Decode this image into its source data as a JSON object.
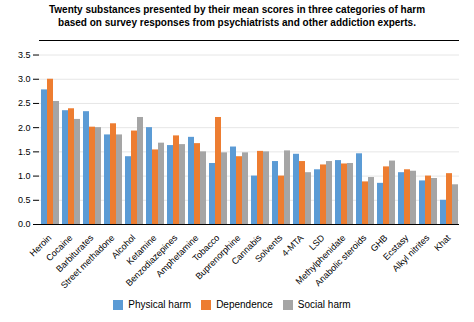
{
  "chart_data": {
    "type": "bar",
    "title": "Twenty substances presented by their mean scores in three categories of harm\nbased on survey responses from psychiatrists and other addiction experts.",
    "categories": [
      "Heroin",
      "Cocaine",
      "Barbiturates",
      "Street methadone",
      "Alcohol",
      "Ketamine",
      "Benzodiazepines",
      "Amphetamine",
      "Tobacco",
      "Buprenorphine",
      "Cannabis",
      "Solvents",
      "4-MTA",
      "LSD",
      "Methylphenidate",
      "Anabolic steroids",
      "GHB",
      "Ecstasy",
      "Alkyl nitrites",
      "Khat"
    ],
    "series": [
      {
        "name": "Physical harm",
        "color": "#5b9bd5",
        "values": [
          2.78,
          2.35,
          2.33,
          1.85,
          1.4,
          2.0,
          1.63,
          1.8,
          1.26,
          1.6,
          1.0,
          1.3,
          1.45,
          1.13,
          1.32,
          1.46,
          0.85,
          1.07,
          0.9,
          0.5
        ]
      },
      {
        "name": "Dependence",
        "color": "#ed7d31",
        "values": [
          3.0,
          2.39,
          2.01,
          2.08,
          1.93,
          1.54,
          1.83,
          1.67,
          2.21,
          1.4,
          1.51,
          1.0,
          1.3,
          1.23,
          1.25,
          0.88,
          1.19,
          1.13,
          1.0,
          1.05
        ]
      },
      {
        "name": "Social harm",
        "color": "#a5a5a5",
        "values": [
          2.54,
          2.17,
          2.0,
          1.85,
          2.21,
          1.68,
          1.65,
          1.5,
          1.48,
          1.48,
          1.5,
          1.52,
          1.07,
          1.3,
          1.26,
          0.97,
          1.31,
          1.1,
          0.95,
          0.82
        ]
      }
    ],
    "ylim": [
      0,
      3.8
    ],
    "yticks": [
      {
        "value": 0,
        "label": "0.0"
      },
      0.5,
      {
        "value": 1,
        "label": "1.0"
      },
      1.5,
      {
        "value": 2,
        "label": "2.0"
      },
      2.5,
      {
        "value": 3,
        "label": "3.0"
      },
      3.5
    ],
    "grid": true,
    "legend": "bottom"
  }
}
